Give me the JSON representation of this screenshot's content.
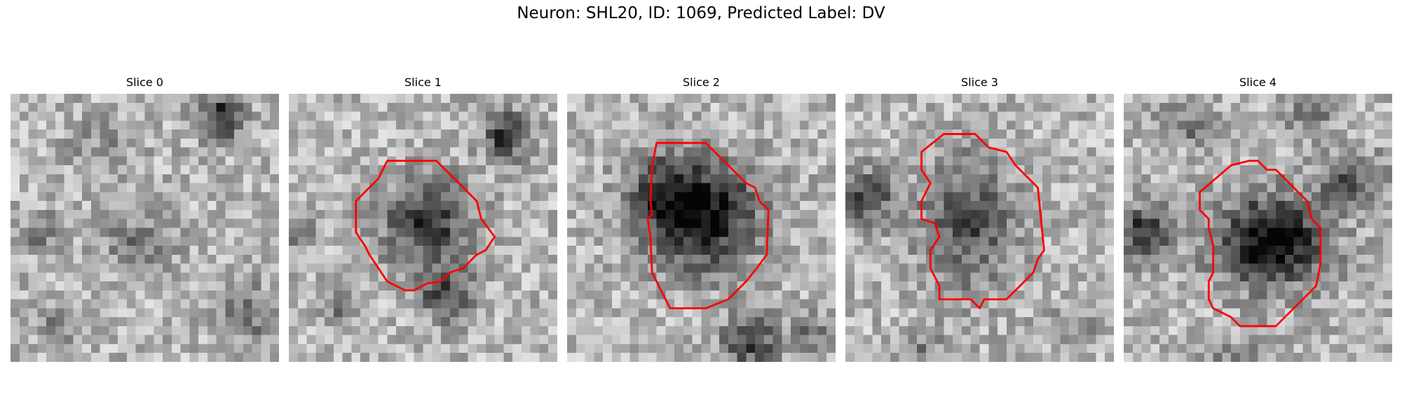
{
  "figure": {
    "title": "Neuron: SHL20, ID: 1069, Predicted Label: DV",
    "contour_color": "#ff0000",
    "colormap": "gray"
  },
  "slices": [
    {
      "title": "Slice 0",
      "has_contour": false
    },
    {
      "title": "Slice 1",
      "has_contour": true
    },
    {
      "title": "Slice 2",
      "has_contour": true
    },
    {
      "title": "Slice 3",
      "has_contour": true
    },
    {
      "title": "Slice 4",
      "has_contour": true
    }
  ]
}
